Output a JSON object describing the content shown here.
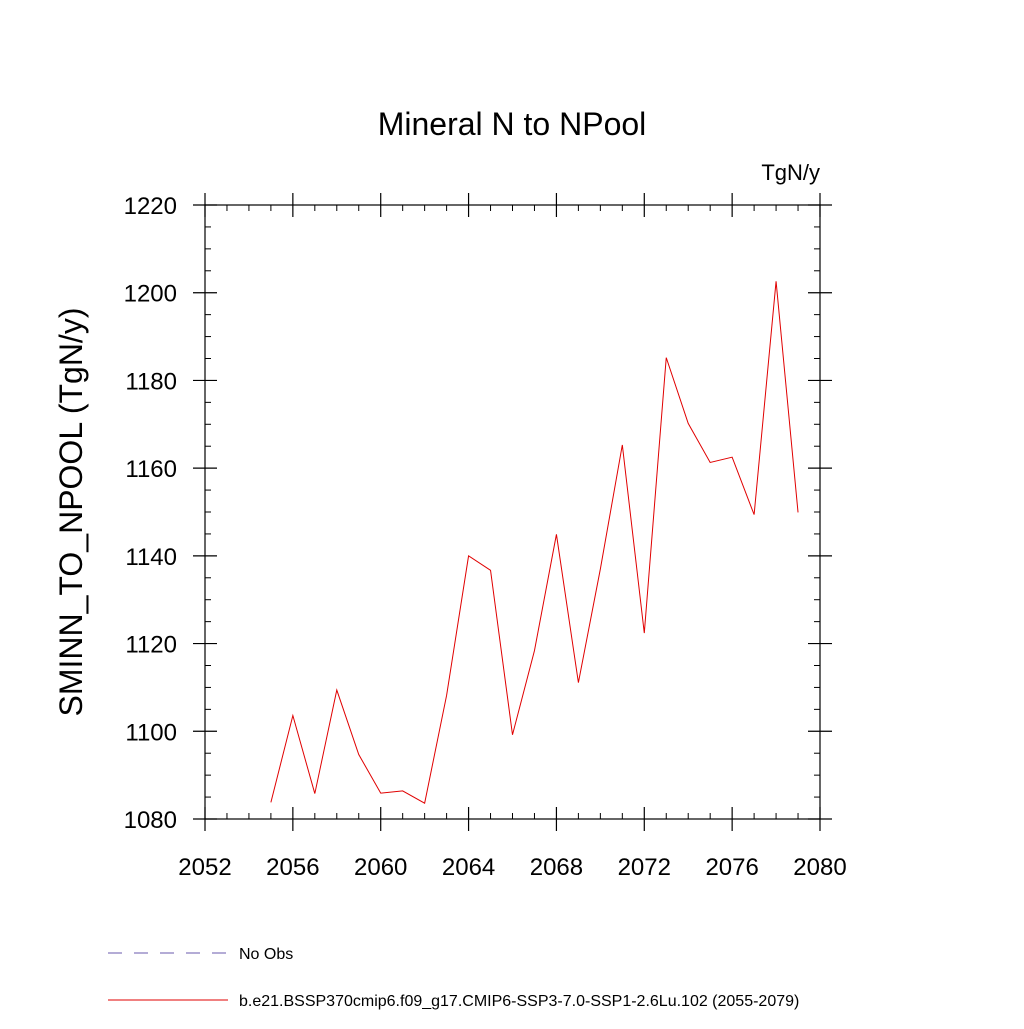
{
  "chart_data": {
    "type": "line",
    "title": "Mineral N to NPool",
    "units_label": "TgN/y",
    "ylabel": "SMINN_TO_NPOOL  (TgN/y)",
    "xlabel": "",
    "xlim": [
      2052,
      2080
    ],
    "ylim": [
      1080,
      1220
    ],
    "x_ticks": [
      2052,
      2056,
      2060,
      2064,
      2068,
      2072,
      2076,
      2080
    ],
    "x_tick_labels": [
      "2052",
      "2056",
      "2060",
      "2064",
      "2068",
      "2072",
      "2076",
      "2080"
    ],
    "y_ticks": [
      1080,
      1100,
      1120,
      1140,
      1160,
      1180,
      1200,
      1220
    ],
    "y_tick_labels": [
      "1080",
      "1100",
      "1120",
      "1140",
      "1160",
      "1180",
      "1200",
      "1220"
    ],
    "x_minor_step": 1,
    "y_minor_step": 5,
    "grid": false,
    "legend_position": "bottom-left",
    "series": [
      {
        "name": "b.e21.BSSP370cmip6.f09_g17.CMIP6-SSP3-7.0-SSP1-2.6Lu.102 (2055-2079)",
        "color": "#e00000",
        "line_style": "solid",
        "x": [
          2055,
          2056,
          2057,
          2058,
          2059,
          2060,
          2061,
          2062,
          2063,
          2064,
          2065,
          2066,
          2067,
          2068,
          2069,
          2070,
          2071,
          2072,
          2073,
          2074,
          2075,
          2076,
          2077,
          2078,
          2079
        ],
        "values": [
          1083.8,
          1103.6,
          1085.8,
          1109.4,
          1094.7,
          1085.9,
          1086.4,
          1083.6,
          1108.2,
          1140.0,
          1136.7,
          1099.2,
          1118.4,
          1144.9,
          1111.1,
          1137.0,
          1165.3,
          1122.4,
          1185.2,
          1170.2,
          1161.3,
          1162.5,
          1149.4,
          1202.6,
          1149.9
        ]
      },
      {
        "name": "No Obs",
        "color": "#6a5aad",
        "line_style": "dashed",
        "x": [],
        "values": []
      }
    ]
  }
}
